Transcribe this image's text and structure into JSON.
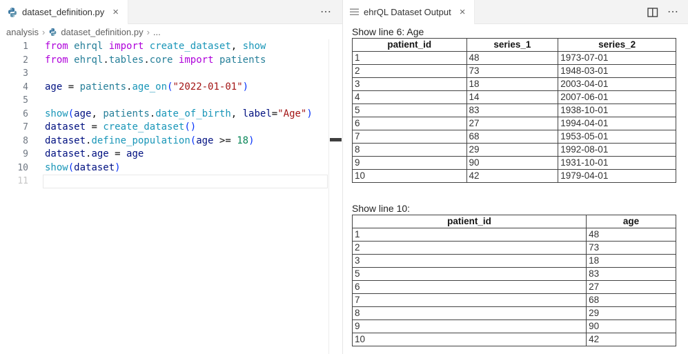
{
  "left_editor": {
    "tab": {
      "title": "dataset_definition.py",
      "close_icon": "×"
    },
    "actions": {
      "more_icon": "⋯"
    },
    "breadcrumb": {
      "items": [
        "analysis",
        "dataset_definition.py",
        "..."
      ],
      "separator": "›"
    },
    "code": {
      "token_styles": {
        "kw": "#af00db",
        "mod": "#267f99",
        "fn": "#1996b8",
        "var": "#001080",
        "str": "#a31515",
        "num": "#098658",
        "pl": "#111111",
        "br": "#0431fa"
      },
      "lines": [
        {
          "num": "1",
          "tokens": [
            [
              "kw",
              "from"
            ],
            [
              "pl",
              " "
            ],
            [
              "mod",
              "ehrql"
            ],
            [
              "pl",
              " "
            ],
            [
              "kw",
              "import"
            ],
            [
              "pl",
              " "
            ],
            [
              "fn",
              "create_dataset"
            ],
            [
              "pl",
              ", "
            ],
            [
              "fn",
              "show"
            ]
          ]
        },
        {
          "num": "2",
          "tokens": [
            [
              "kw",
              "from"
            ],
            [
              "pl",
              " "
            ],
            [
              "mod",
              "ehrql"
            ],
            [
              "pl",
              "."
            ],
            [
              "mod",
              "tables"
            ],
            [
              "pl",
              "."
            ],
            [
              "mod",
              "core"
            ],
            [
              "pl",
              " "
            ],
            [
              "kw",
              "import"
            ],
            [
              "pl",
              " "
            ],
            [
              "mod",
              "patients"
            ]
          ]
        },
        {
          "num": "3",
          "tokens": []
        },
        {
          "num": "4",
          "tokens": [
            [
              "var",
              "age"
            ],
            [
              "pl",
              " = "
            ],
            [
              "mod",
              "patients"
            ],
            [
              "pl",
              "."
            ],
            [
              "fn",
              "age_on"
            ],
            [
              "br",
              "("
            ],
            [
              "str",
              "\"2022-01-01\""
            ],
            [
              "br",
              ")"
            ]
          ]
        },
        {
          "num": "5",
          "tokens": []
        },
        {
          "num": "6",
          "tokens": [
            [
              "fn",
              "show"
            ],
            [
              "br",
              "("
            ],
            [
              "var",
              "age"
            ],
            [
              "pl",
              ", "
            ],
            [
              "mod",
              "patients"
            ],
            [
              "pl",
              "."
            ],
            [
              "fn",
              "date_of_birth"
            ],
            [
              "pl",
              ", "
            ],
            [
              "var",
              "label"
            ],
            [
              "pl",
              "="
            ],
            [
              "str",
              "\"Age\""
            ],
            [
              "br",
              ")"
            ]
          ]
        },
        {
          "num": "7",
          "tokens": [
            [
              "var",
              "dataset"
            ],
            [
              "pl",
              " = "
            ],
            [
              "fn",
              "create_dataset"
            ],
            [
              "br",
              "()"
            ]
          ]
        },
        {
          "num": "8",
          "tokens": [
            [
              "var",
              "dataset"
            ],
            [
              "pl",
              "."
            ],
            [
              "fn",
              "define_population"
            ],
            [
              "br",
              "("
            ],
            [
              "var",
              "age"
            ],
            [
              "pl",
              " >= "
            ],
            [
              "num",
              "18"
            ],
            [
              "br",
              ")"
            ]
          ]
        },
        {
          "num": "9",
          "tokens": [
            [
              "var",
              "dataset"
            ],
            [
              "pl",
              "."
            ],
            [
              "var",
              "age"
            ],
            [
              "pl",
              " = "
            ],
            [
              "var",
              "age"
            ]
          ]
        },
        {
          "num": "10",
          "tokens": [
            [
              "fn",
              "show"
            ],
            [
              "br",
              "("
            ],
            [
              "var",
              "dataset"
            ],
            [
              "br",
              ")"
            ]
          ]
        },
        {
          "num": "11",
          "current": true,
          "tokens": []
        }
      ]
    }
  },
  "output_panel": {
    "tab": {
      "title": "ehrQL Dataset Output",
      "close_icon": "×"
    },
    "actions": {
      "more_icon": "⋯"
    },
    "sections": [
      {
        "heading": "Show line 6: Age",
        "columns": [
          "patient_id",
          "series_1",
          "series_2"
        ],
        "col_widths": [
          "35.3%",
          "28.3%",
          "36.4%"
        ],
        "rows": [
          [
            "1",
            "48",
            "1973-07-01"
          ],
          [
            "2",
            "73",
            "1948-03-01"
          ],
          [
            "3",
            "18",
            "2003-04-01"
          ],
          [
            "4",
            "14",
            "2007-06-01"
          ],
          [
            "5",
            "83",
            "1938-10-01"
          ],
          [
            "6",
            "27",
            "1994-04-01"
          ],
          [
            "7",
            "68",
            "1953-05-01"
          ],
          [
            "8",
            "29",
            "1992-08-01"
          ],
          [
            "9",
            "90",
            "1931-10-01"
          ],
          [
            "10",
            "42",
            "1979-04-01"
          ]
        ]
      },
      {
        "heading": "Show line 10:",
        "columns": [
          "patient_id",
          "age"
        ],
        "col_widths": [
          "72.3%",
          "27.7%"
        ],
        "rows": [
          [
            "1",
            "48"
          ],
          [
            "2",
            "73"
          ],
          [
            "3",
            "18"
          ],
          [
            "5",
            "83"
          ],
          [
            "6",
            "27"
          ],
          [
            "7",
            "68"
          ],
          [
            "8",
            "29"
          ],
          [
            "9",
            "90"
          ],
          [
            "10",
            "42"
          ]
        ]
      }
    ]
  }
}
